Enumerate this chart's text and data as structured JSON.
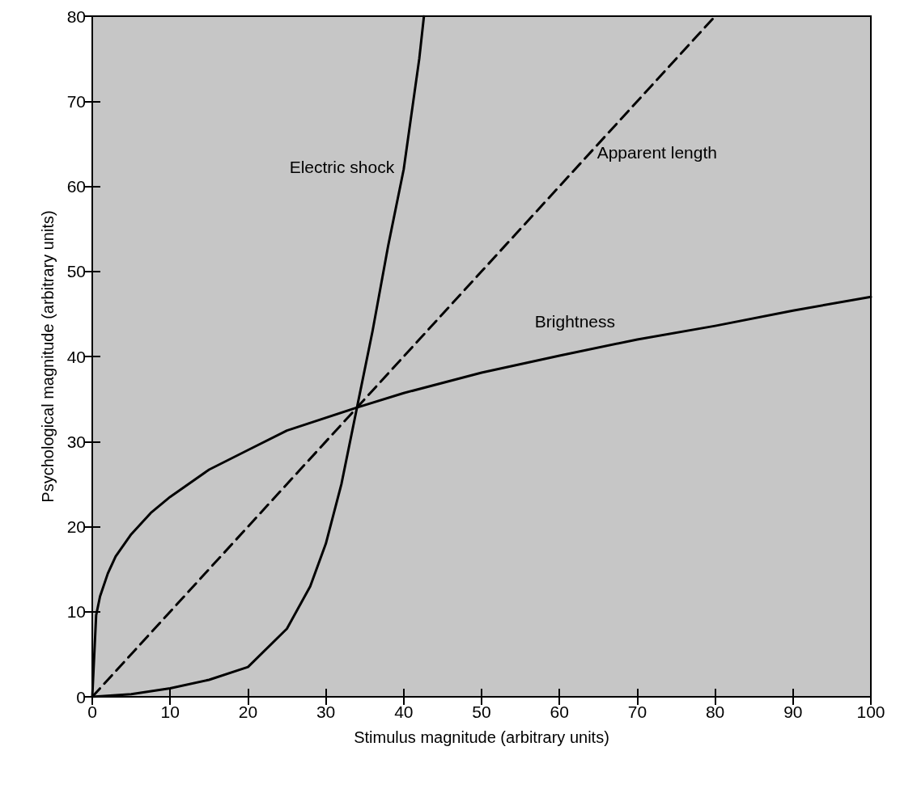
{
  "chart_data": {
    "type": "line",
    "xlabel": "Stimulus magnitude (arbitrary units)",
    "ylabel": "Psychological magnitude (arbitrary units)",
    "xlim": [
      0,
      100
    ],
    "xticks": [
      0,
      10,
      20,
      30,
      40,
      50,
      60,
      70,
      80,
      90,
      100
    ],
    "ylim": [
      0,
      80
    ],
    "yticks": [
      0,
      10,
      20,
      30,
      40,
      50,
      60,
      70,
      80
    ],
    "grid": false,
    "marker": "none",
    "series": [
      {
        "name": "Electric shock",
        "color": "#000000",
        "line_style": "solid",
        "x": [
          0,
          5,
          10,
          15,
          20,
          25,
          28,
          30,
          32,
          34,
          36,
          38,
          40,
          42,
          42.6
        ],
        "values": [
          0,
          0.3,
          1,
          2,
          3.5,
          8,
          13,
          18,
          25,
          34,
          43,
          53,
          62,
          75,
          80
        ]
      },
      {
        "name": "Apparent length",
        "color": "#000000",
        "line_style": "dashed",
        "x": [
          0,
          80
        ],
        "values": [
          0,
          80
        ]
      },
      {
        "name": "Brightness",
        "color": "#000000",
        "line_style": "solid",
        "x": [
          0,
          0.5,
          1,
          2,
          3,
          5,
          7.5,
          10,
          15,
          20,
          25,
          34,
          40,
          50,
          60,
          70,
          80,
          90,
          100
        ],
        "values": [
          0,
          9.6,
          11.8,
          14.5,
          16.5,
          19.1,
          21.6,
          23.5,
          26.7,
          29,
          31.3,
          34,
          35.7,
          38.1,
          40.1,
          42,
          43.6,
          45.4,
          47
        ]
      }
    ]
  }
}
